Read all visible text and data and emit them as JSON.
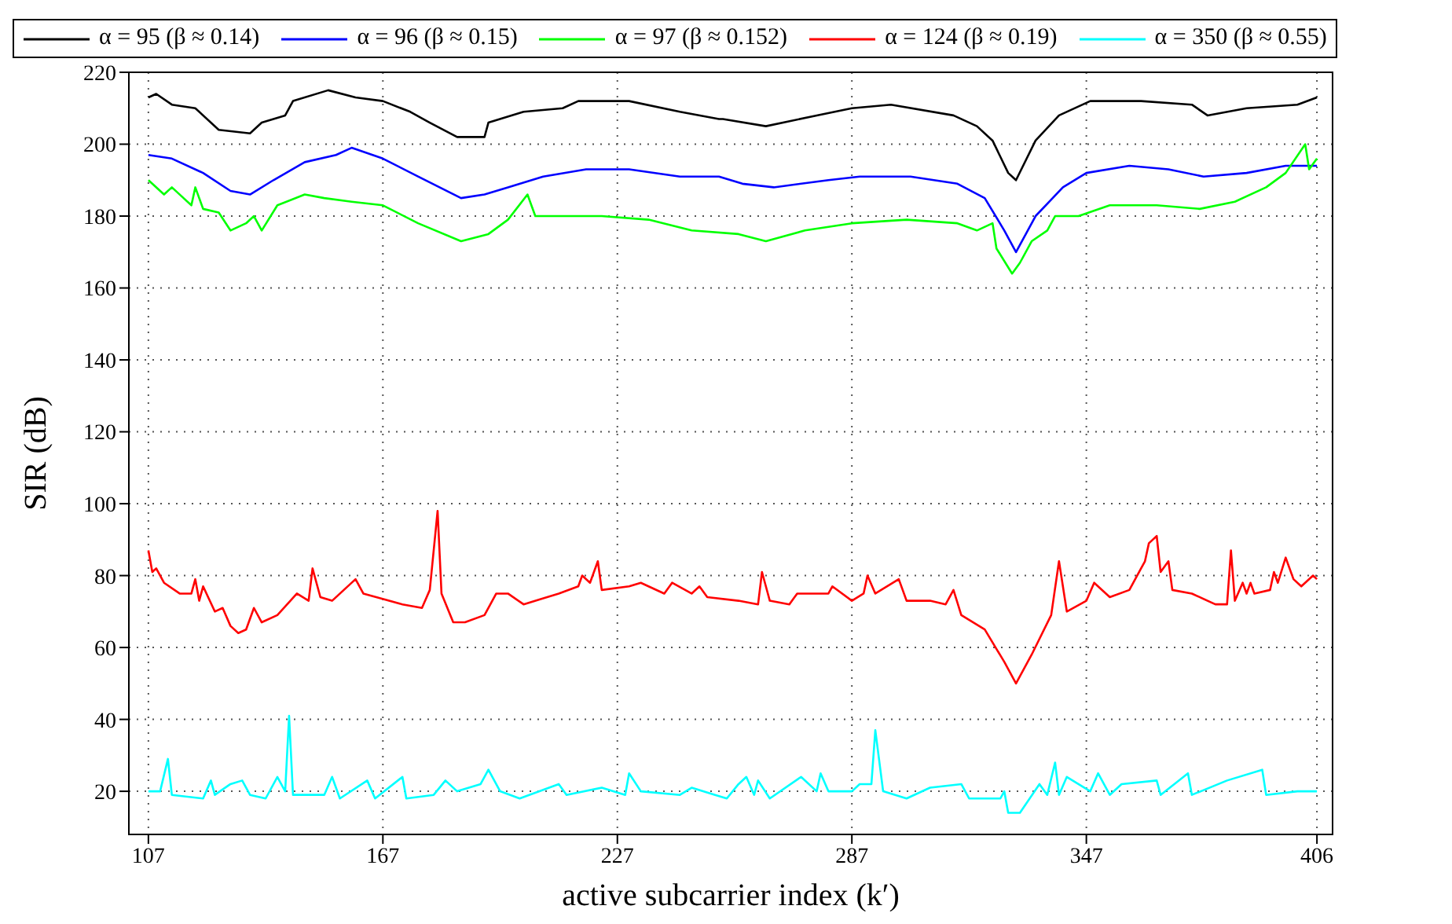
{
  "chart_data": {
    "type": "line",
    "xlabel": "active subcarrier index (k′)",
    "ylabel": "SIR (dB)",
    "xlim": [
      102,
      410
    ],
    "xticks": [
      107,
      167,
      227,
      287,
      347,
      406
    ],
    "ylim": [
      8,
      220
    ],
    "yticks": [
      20,
      40,
      60,
      80,
      100,
      120,
      140,
      160,
      180,
      200,
      220
    ],
    "grid": true,
    "legend": "top",
    "marker": "none",
    "line_style": "solid",
    "series": [
      {
        "name": "α = 95 (β ≈ 0.14)",
        "color": "#000000",
        "x": [
          107,
          109,
          113,
          119,
          125,
          133,
          136,
          142,
          144,
          153,
          160,
          167,
          174,
          179,
          186,
          193,
          194,
          203,
          213,
          217,
          230,
          243,
          253,
          254,
          265,
          278,
          287,
          297,
          313,
          319,
          323,
          327,
          329,
          334,
          340,
          348,
          361,
          374,
          378,
          388,
          401,
          406
        ],
        "values": [
          213,
          214,
          211,
          210,
          204,
          203,
          206,
          208,
          212,
          215,
          213,
          212,
          209,
          206,
          202,
          202,
          206,
          209,
          210,
          212,
          212,
          209,
          207,
          207,
          205,
          208,
          210,
          211,
          208,
          205,
          201,
          192,
          190,
          201,
          208,
          212,
          212,
          211,
          208,
          210,
          211,
          213
        ]
      },
      {
        "name": "α = 96 (β ≈ 0.15)",
        "color": "#0000ff",
        "x": [
          107,
          113,
          121,
          128,
          133,
          139,
          147,
          155,
          159,
          167,
          176,
          187,
          193,
          199,
          208,
          219,
          230,
          243,
          253,
          259,
          267,
          281,
          289,
          302,
          314,
          321,
          326,
          329,
          334,
          341,
          347,
          358,
          368,
          377,
          388,
          398,
          406
        ],
        "values": [
          197,
          196,
          192,
          187,
          186,
          190,
          195,
          197,
          199,
          196,
          191,
          185,
          186,
          188,
          191,
          193,
          193,
          191,
          191,
          189,
          188,
          190,
          191,
          191,
          189,
          185,
          176,
          170,
          180,
          188,
          192,
          194,
          193,
          191,
          192,
          194,
          194
        ]
      },
      {
        "name": "α = 97 (β ≈ 0.152)",
        "color": "#00ff00",
        "x": [
          107,
          111,
          113,
          116,
          118,
          119,
          121,
          125,
          128,
          132,
          134,
          136,
          140,
          147,
          152,
          159,
          167,
          176,
          187,
          194,
          199,
          204,
          206,
          215,
          223,
          235,
          246,
          258,
          265,
          275,
          287,
          301,
          314,
          319,
          323,
          324,
          328,
          330,
          333,
          337,
          339,
          345,
          353,
          365,
          376,
          385,
          393,
          398,
          403,
          404,
          406
        ],
        "values": [
          190,
          186,
          188,
          185,
          183,
          188,
          182,
          181,
          176,
          178,
          180,
          176,
          183,
          186,
          185,
          184,
          183,
          178,
          173,
          175,
          179,
          186,
          180,
          180,
          180,
          179,
          176,
          175,
          173,
          176,
          178,
          179,
          178,
          176,
          178,
          171,
          164,
          167,
          173,
          176,
          180,
          180,
          183,
          183,
          182,
          184,
          188,
          192,
          200,
          193,
          196
        ]
      },
      {
        "name": "α = 124 (β ≈ 0.19)",
        "color": "#ff0000",
        "x": [
          107,
          108,
          109,
          111,
          115,
          118,
          119,
          120,
          121,
          124,
          126,
          128,
          130,
          132,
          134,
          136,
          140,
          145,
          148,
          149,
          151,
          154,
          160,
          162,
          172,
          177,
          179,
          181,
          182,
          185,
          188,
          193,
          196,
          199,
          203,
          212,
          217,
          218,
          220,
          222,
          223,
          230,
          233,
          239,
          241,
          246,
          248,
          250,
          258,
          263,
          264,
          266,
          271,
          273,
          281,
          282,
          287,
          290,
          291,
          293,
          299,
          301,
          307,
          311,
          313,
          315,
          321,
          326,
          329,
          333,
          338,
          340,
          342,
          347,
          349,
          353,
          358,
          361,
          362,
          363,
          365,
          366,
          368,
          369,
          374,
          380,
          383,
          384,
          385,
          387,
          388,
          389,
          390,
          394,
          395,
          396,
          398,
          400,
          402,
          405,
          406
        ],
        "values": [
          87,
          81,
          82,
          78,
          75,
          75,
          79,
          73,
          77,
          70,
          71,
          66,
          64,
          65,
          71,
          67,
          69,
          75,
          73,
          82,
          74,
          73,
          79,
          75,
          72,
          71,
          76,
          98,
          75,
          67,
          67,
          69,
          75,
          75,
          72,
          75,
          77,
          80,
          78,
          84,
          76,
          77,
          78,
          75,
          78,
          75,
          77,
          74,
          73,
          72,
          81,
          73,
          72,
          75,
          75,
          77,
          73,
          75,
          80,
          75,
          79,
          73,
          73,
          72,
          76,
          69,
          65,
          56,
          50,
          58,
          69,
          84,
          70,
          73,
          78,
          74,
          76,
          82,
          84,
          89,
          91,
          81,
          84,
          76,
          75,
          72,
          72,
          87,
          73,
          78,
          75,
          78,
          75,
          76,
          81,
          78,
          85,
          79,
          77,
          80,
          79
        ]
      },
      {
        "name": "α = 350 (β ≈ 0.55)",
        "color": "#00ffff",
        "x": [
          107,
          108,
          110,
          112,
          113,
          121,
          123,
          124,
          128,
          131,
          133,
          137,
          140,
          142,
          143,
          144,
          152,
          154,
          156,
          163,
          165,
          172,
          173,
          180,
          183,
          186,
          192,
          194,
          197,
          202,
          212,
          214,
          223,
          229,
          230,
          233,
          243,
          246,
          252,
          255,
          258,
          260,
          262,
          263,
          266,
          274,
          278,
          279,
          281,
          287,
          289,
          292,
          293,
          295,
          301,
          307,
          315,
          317,
          325,
          326,
          327,
          330,
          335,
          337,
          339,
          340,
          342,
          348,
          350,
          353,
          356,
          365,
          366,
          373,
          374,
          383,
          392,
          393,
          401,
          406
        ],
        "values": [
          20,
          20,
          20,
          29,
          19,
          18,
          23,
          19,
          22,
          23,
          19,
          18,
          24,
          20,
          41,
          19,
          19,
          24,
          18,
          23,
          18,
          24,
          18,
          19,
          23,
          20,
          22,
          26,
          20,
          18,
          22,
          19,
          21,
          19,
          25,
          20,
          19,
          21,
          19,
          18,
          22,
          24,
          19,
          23,
          18,
          24,
          20,
          25,
          20,
          20,
          22,
          22,
          37,
          20,
          18,
          21,
          22,
          18,
          18,
          20,
          14,
          14,
          22,
          19,
          28,
          19,
          24,
          20,
          25,
          19,
          22,
          23,
          19,
          25,
          19,
          23,
          26,
          19,
          20,
          20
        ]
      }
    ]
  }
}
